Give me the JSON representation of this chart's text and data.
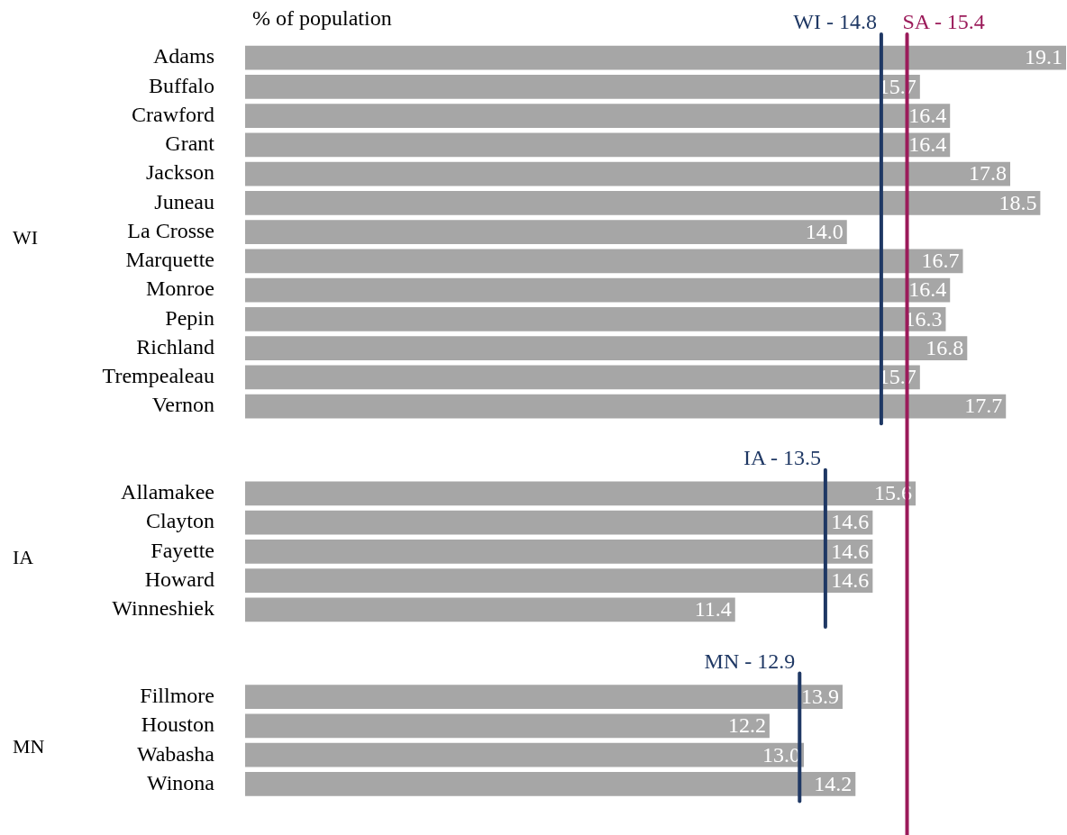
{
  "chart_data": {
    "type": "bar",
    "orientation": "horizontal",
    "title": "% of population",
    "categories": [
      "Adams",
      "Buffalo",
      "Crawford",
      "Grant",
      "Jackson",
      "Juneau",
      "La Crosse",
      "Marquette",
      "Monroe",
      "Pepin",
      "Richland",
      "Trempealeau",
      "Vernon",
      null,
      null,
      "Allamakee",
      "Clayton",
      "Fayette",
      "Howard",
      "Winneshiek",
      null,
      null,
      "Fillmore",
      "Houston",
      "Wabasha",
      "Winona"
    ],
    "values": [
      19.1,
      15.7,
      16.4,
      16.4,
      17.8,
      18.5,
      14.0,
      16.7,
      16.4,
      16.3,
      16.8,
      15.7,
      17.7,
      null,
      null,
      15.6,
      14.6,
      14.6,
      14.6,
      11.4,
      null,
      null,
      13.9,
      12.2,
      13.0,
      14.2
    ],
    "color": "#a6a6a6",
    "value_labels": [
      "19.1",
      "15.7",
      "16.4",
      "16.4",
      "17.8",
      "18.5",
      "14.0",
      "16.7",
      "16.4",
      "16.3",
      "16.8",
      "15.7",
      "17.7",
      null,
      null,
      "15.6",
      "14.6",
      "14.6",
      "14.6",
      "11.4",
      null,
      null,
      "13.9",
      "12.2",
      "13.0",
      "14.2"
    ],
    "xlim": [
      0,
      19.1
    ],
    "tick_labels": "y",
    "grid": false,
    "ref_lines": [
      {
        "axis": "x",
        "value": 14.8,
        "label": "WI - 14.8",
        "color": "#1f3864"
      },
      {
        "axis": "x",
        "value": 13.5,
        "label": "IA - 13.5",
        "color": "#1f3864"
      },
      {
        "axis": "x",
        "value": 12.9,
        "label": "MN - 12.9",
        "color": "#1f3864"
      },
      {
        "axis": "x",
        "value": 15.4,
        "label": "SA - 15.4",
        "color": "#9b1b5a"
      }
    ],
    "annotations": [
      "WI",
      "IA",
      "MN"
    ]
  }
}
